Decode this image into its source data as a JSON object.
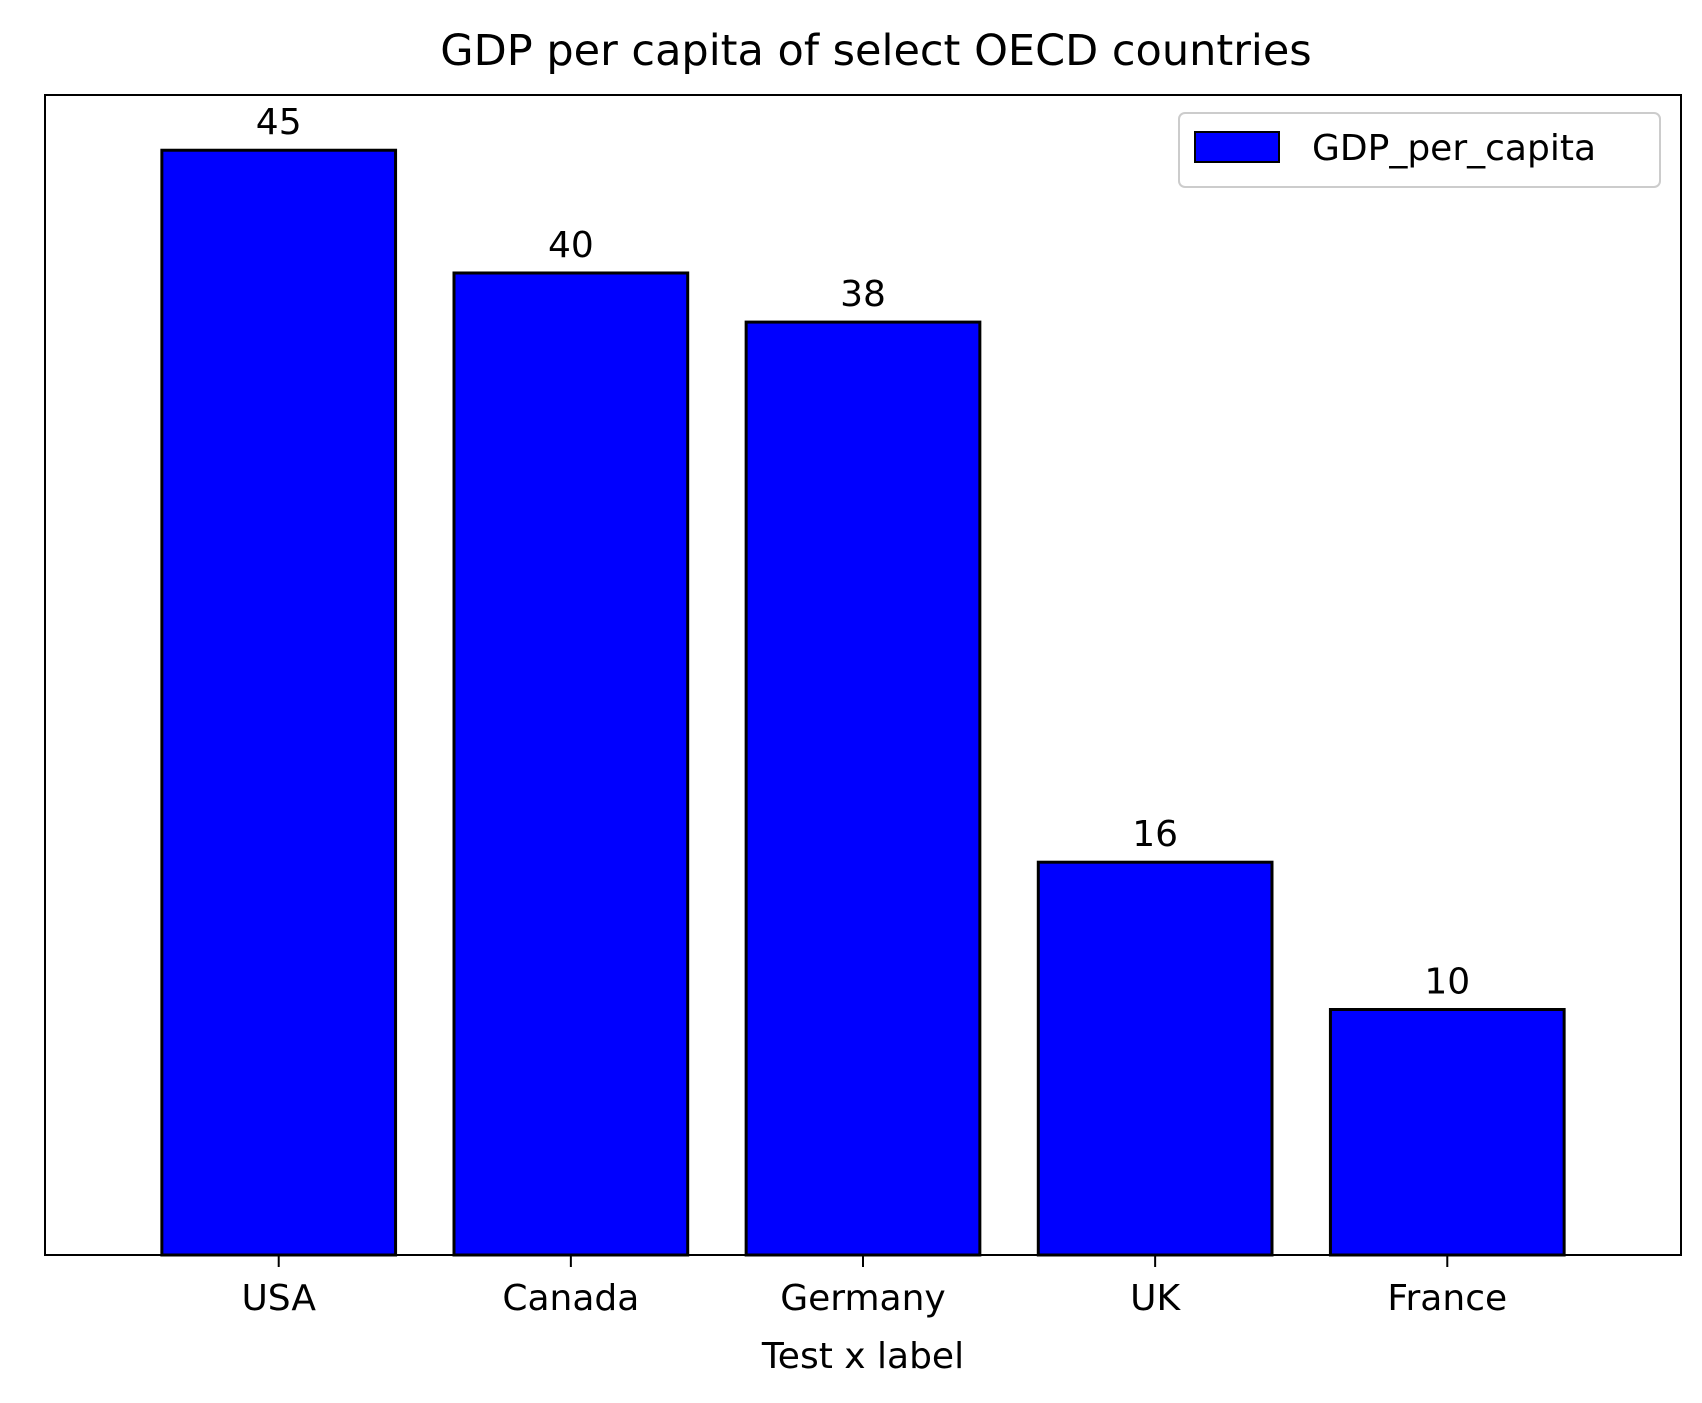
{
  "chart_data": {
    "type": "bar",
    "title": "GDP per capita of select OECD countries",
    "xlabel": "Test x label",
    "ylabel": "",
    "categories": [
      "USA",
      "Canada",
      "Germany",
      "UK",
      "France"
    ],
    "series": [
      {
        "name": "GDP_per_capita",
        "values": [
          45,
          40,
          38,
          16,
          10
        ],
        "color": "#0000ff",
        "edge_color": "#000000"
      }
    ],
    "data_labels": [
      "45",
      "40",
      "38",
      "16",
      "10"
    ],
    "ylim": [
      0,
      47.25
    ],
    "y_ticks_visible": false,
    "grid": false,
    "legend": {
      "position": "top-right",
      "entries": [
        "GDP_per_capita"
      ]
    }
  }
}
